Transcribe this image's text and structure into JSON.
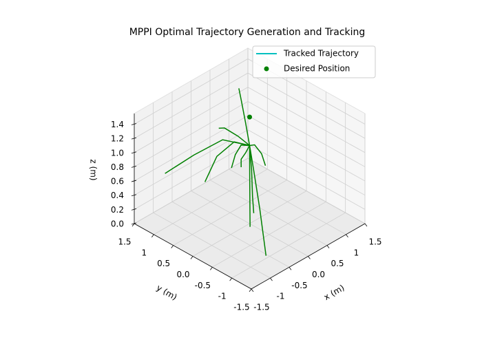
{
  "chart_data": {
    "type": "line3d",
    "title": "MPPI Optimal Trajectory Generation and Tracking",
    "xlabel": "x (m)",
    "ylabel": "y (m)",
    "zlabel": "z (m)",
    "xlim": [
      -1.5,
      1.5
    ],
    "ylim": [
      -1.5,
      1.5
    ],
    "zlim": [
      0,
      1.55
    ],
    "xticks": [
      -1.5,
      -1.0,
      -0.5,
      {
        "value": 0,
        "label": "0.0"
      },
      0.5,
      1.0,
      1.5
    ],
    "yticks": [
      -1.5,
      -1.0,
      -0.5,
      {
        "value": 0,
        "label": "0.0"
      },
      0.5,
      1.0,
      1.5
    ],
    "zticks": [
      {
        "value": 0,
        "label": "0.0"
      },
      0.2,
      0.4,
      0.6,
      0.8,
      {
        "value": 1,
        "label": "1.0"
      },
      1.2,
      1.4
    ],
    "grid": true,
    "legend": "upper right",
    "series": [
      {
        "name": "Tracked Trajectory",
        "type": "line",
        "color": "#00bfbf",
        "x": [],
        "y": [],
        "z": []
      },
      {
        "name": "Desired Position",
        "type": "scatter",
        "color": "#008000",
        "x": [
          0
        ],
        "y": [
          0
        ],
        "z": [
          1.5
        ]
      }
    ],
    "samples": {
      "color": "#008000",
      "lines": [
        {
          "x": [
            0,
            -0.3,
            -0.7,
            -1.09
          ],
          "y": [
            0,
            0.4,
            0.75,
            1.11
          ],
          "z": [
            1.1,
            1.15,
            0.95,
            0.7
          ]
        },
        {
          "x": [
            0,
            -0.15,
            -0.35,
            -0.52
          ],
          "y": [
            0,
            0.25,
            0.5,
            0.64
          ],
          "z": [
            1.1,
            1.12,
            0.9,
            0.55
          ]
        },
        {
          "x": [
            0,
            -0.1,
            -0.25,
            -0.33
          ],
          "y": [
            0,
            0.2,
            0.4,
            0.47
          ],
          "z": [
            1.1,
            1.2,
            1.3,
            1.3
          ]
        },
        {
          "x": [
            0,
            0.15,
            0.35,
            0.53
          ],
          "y": [
            0,
            0.25,
            0.55,
            0.79
          ],
          "z": [
            1.1,
            1.3,
            1.45,
            1.5
          ]
        },
        {
          "x": [
            0,
            -0.1,
            -0.35,
            -0.7
          ],
          "y": [
            0,
            -0.2,
            -0.6,
            -1.1
          ],
          "z": [
            1.1,
            0.85,
            0.5,
            0.1
          ]
        },
        {
          "x": [
            0,
            -0.05,
            -0.15,
            -0.2
          ],
          "y": [
            0,
            -0.1,
            -0.22,
            -0.3
          ],
          "z": [
            1.1,
            0.8,
            0.5,
            0.3
          ]
        },
        {
          "x": [
            0,
            0.08,
            0.13,
            0.15
          ],
          "y": [
            0,
            -0.05,
            -0.18,
            -0.26
          ],
          "z": [
            1.1,
            1.1,
            1.0,
            0.85
          ]
        },
        {
          "x": [
            0,
            -0.1,
            -0.15,
            -0.18
          ],
          "y": [
            0,
            0.12,
            0.22,
            0.29
          ],
          "z": [
            1.1,
            1.1,
            0.95,
            0.75
          ]
        },
        {
          "x": [
            0,
            -0.05,
            -0.1,
            -0.12
          ],
          "y": [
            0,
            0.05,
            0.12,
            0.1
          ],
          "z": [
            1.1,
            1.0,
            0.9,
            0.8
          ]
        },
        {
          "x": [
            0,
            -0.05,
            -0.2,
            -0.4
          ],
          "y": [
            0,
            -0.05,
            -0.2,
            -0.4
          ],
          "z": [
            1.1,
            0.8,
            0.5,
            0.2
          ]
        }
      ]
    }
  }
}
